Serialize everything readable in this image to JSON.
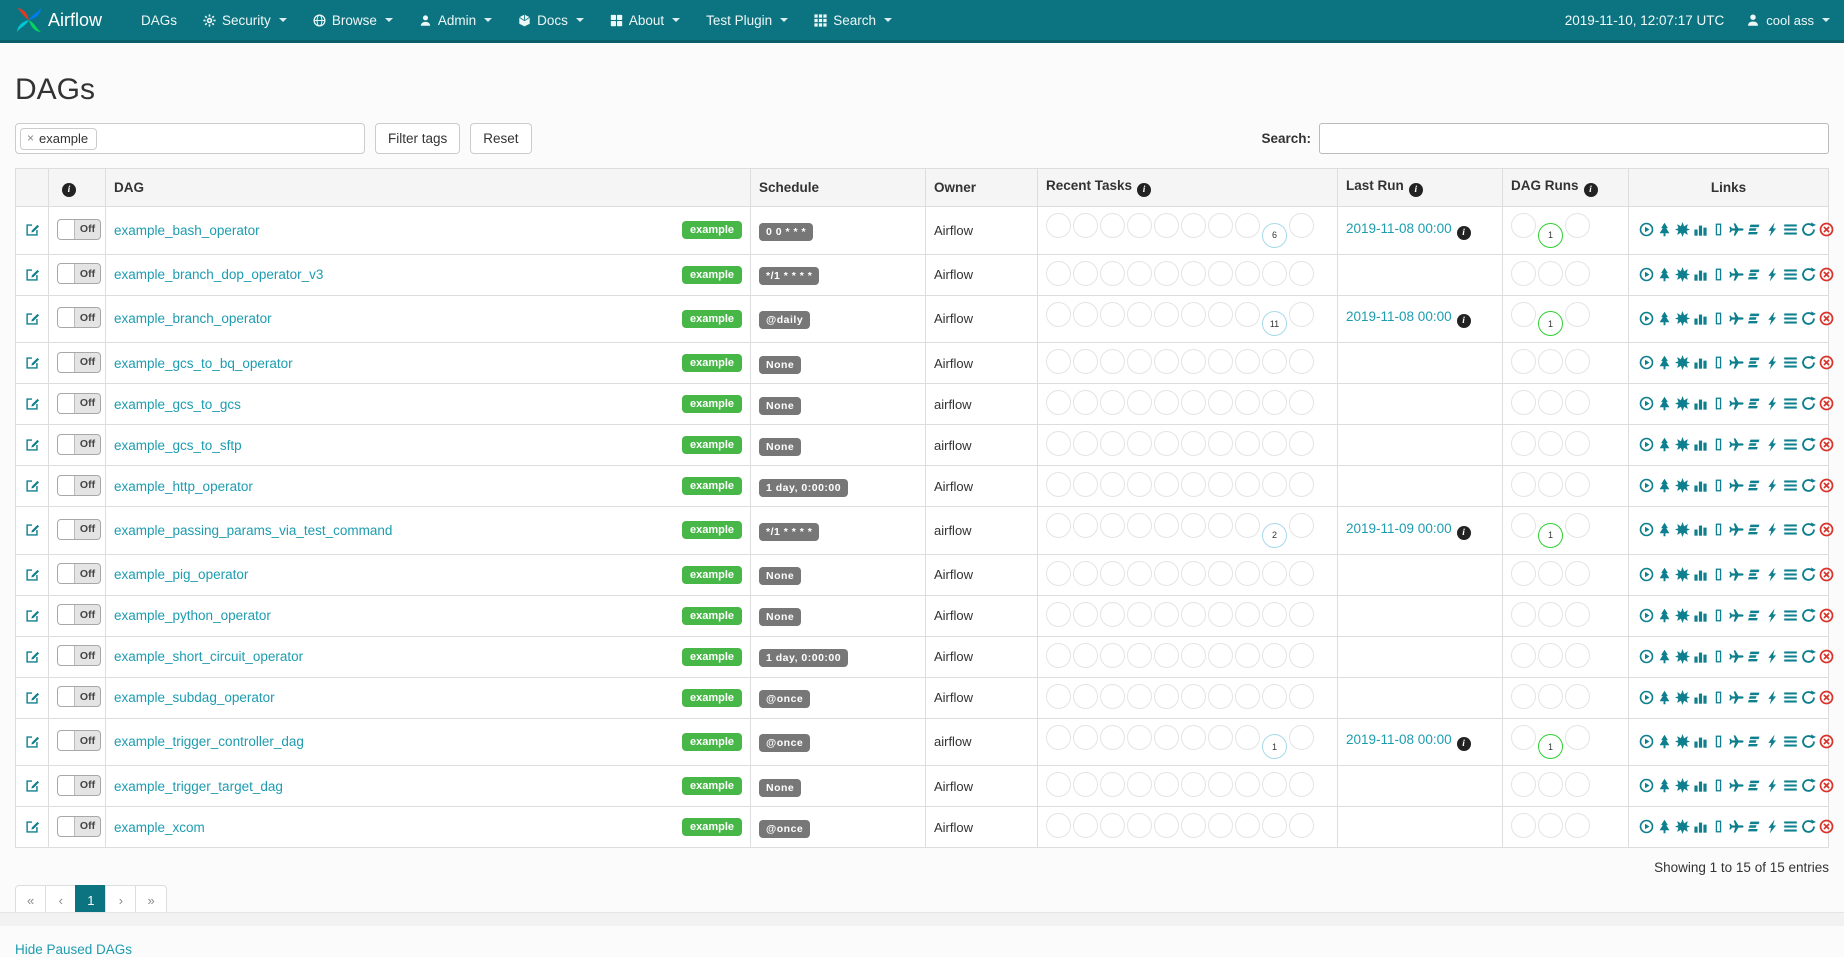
{
  "navbar": {
    "brand": "Airflow",
    "items": [
      {
        "label": "DAGs",
        "icon": null,
        "dropdown": false
      },
      {
        "label": "Security",
        "icon": "gear",
        "dropdown": true
      },
      {
        "label": "Browse",
        "icon": "globe",
        "dropdown": true
      },
      {
        "label": "Admin",
        "icon": "user",
        "dropdown": true
      },
      {
        "label": "Docs",
        "icon": "cube",
        "dropdown": true
      },
      {
        "label": "About",
        "icon": "grid4",
        "dropdown": true
      },
      {
        "label": "Test Plugin",
        "icon": null,
        "dropdown": true
      },
      {
        "label": "Search",
        "icon": "grid9",
        "dropdown": true
      }
    ],
    "clock": "2019-11-10, 12:07:17 UTC",
    "user": "cool ass"
  },
  "page": {
    "title": "DAGs"
  },
  "filters": {
    "tag_chip": "example",
    "filter_button": "Filter tags",
    "reset_button": "Reset",
    "search_label": "Search:",
    "search_value": ""
  },
  "table": {
    "columns": [
      {
        "label": "",
        "info": false
      },
      {
        "label": "",
        "info": true
      },
      {
        "label": "DAG",
        "info": false
      },
      {
        "label": "Schedule",
        "info": false
      },
      {
        "label": "Owner",
        "info": false
      },
      {
        "label": "Recent Tasks",
        "info": true
      },
      {
        "label": "Last Run",
        "info": true
      },
      {
        "label": "DAG Runs",
        "info": true
      },
      {
        "label": "Links",
        "info": false,
        "center": true
      }
    ],
    "toggle_label": "Off",
    "recent_task_circles": 10,
    "dag_run_circles": 3,
    "links": [
      {
        "name": "trigger-dag",
        "icon": "play-circle"
      },
      {
        "name": "tree-view",
        "icon": "tree"
      },
      {
        "name": "graph-view",
        "icon": "graph"
      },
      {
        "name": "task-duration",
        "icon": "bar-chart"
      },
      {
        "name": "task-tries",
        "icon": "tries"
      },
      {
        "name": "landing-times",
        "icon": "plane"
      },
      {
        "name": "gantt-view",
        "icon": "gantt"
      },
      {
        "name": "code-view",
        "icon": "bolt"
      },
      {
        "name": "logs",
        "icon": "lines"
      },
      {
        "name": "refresh",
        "icon": "refresh"
      },
      {
        "name": "delete-dag",
        "icon": "delete",
        "danger": true
      }
    ],
    "rows": [
      {
        "name": "example_bash_operator",
        "tag": "example",
        "schedule": "0 0 * * *",
        "owner": "Airflow",
        "recent": {
          "index": 8,
          "count": "6",
          "state": "none"
        },
        "last_run": "2019-11-08 00:00",
        "dag_runs": {
          "index": 1,
          "count": "1",
          "state": "success"
        }
      },
      {
        "name": "example_branch_dop_operator_v3",
        "tag": "example",
        "schedule": "*/1 * * * *",
        "owner": "Airflow",
        "recent": null,
        "last_run": "",
        "dag_runs": null
      },
      {
        "name": "example_branch_operator",
        "tag": "example",
        "schedule": "@daily",
        "owner": "Airflow",
        "recent": {
          "index": 8,
          "count": "11",
          "state": "none"
        },
        "last_run": "2019-11-08 00:00",
        "dag_runs": {
          "index": 1,
          "count": "1",
          "state": "success"
        }
      },
      {
        "name": "example_gcs_to_bq_operator",
        "tag": "example",
        "schedule": "None",
        "owner": "Airflow",
        "recent": null,
        "last_run": "",
        "dag_runs": null
      },
      {
        "name": "example_gcs_to_gcs",
        "tag": "example",
        "schedule": "None",
        "owner": "airflow",
        "recent": null,
        "last_run": "",
        "dag_runs": null
      },
      {
        "name": "example_gcs_to_sftp",
        "tag": "example",
        "schedule": "None",
        "owner": "airflow",
        "recent": null,
        "last_run": "",
        "dag_runs": null
      },
      {
        "name": "example_http_operator",
        "tag": "example",
        "schedule": "1 day, 0:00:00",
        "owner": "Airflow",
        "recent": null,
        "last_run": "",
        "dag_runs": null
      },
      {
        "name": "example_passing_params_via_test_command",
        "tag": "example",
        "schedule": "*/1 * * * *",
        "owner": "airflow",
        "recent": {
          "index": 8,
          "count": "2",
          "state": "none"
        },
        "last_run": "2019-11-09 00:00",
        "dag_runs": {
          "index": 1,
          "count": "1",
          "state": "success"
        }
      },
      {
        "name": "example_pig_operator",
        "tag": "example",
        "schedule": "None",
        "owner": "Airflow",
        "recent": null,
        "last_run": "",
        "dag_runs": null
      },
      {
        "name": "example_python_operator",
        "tag": "example",
        "schedule": "None",
        "owner": "Airflow",
        "recent": null,
        "last_run": "",
        "dag_runs": null
      },
      {
        "name": "example_short_circuit_operator",
        "tag": "example",
        "schedule": "1 day, 0:00:00",
        "owner": "Airflow",
        "recent": null,
        "last_run": "",
        "dag_runs": null
      },
      {
        "name": "example_subdag_operator",
        "tag": "example",
        "schedule": "@once",
        "owner": "Airflow",
        "recent": null,
        "last_run": "",
        "dag_runs": null
      },
      {
        "name": "example_trigger_controller_dag",
        "tag": "example",
        "schedule": "@once",
        "owner": "airflow",
        "recent": {
          "index": 8,
          "count": "1",
          "state": "none"
        },
        "last_run": "2019-11-08 00:00",
        "dag_runs": {
          "index": 1,
          "count": "1",
          "state": "success"
        }
      },
      {
        "name": "example_trigger_target_dag",
        "tag": "example",
        "schedule": "None",
        "owner": "Airflow",
        "recent": null,
        "last_run": "",
        "dag_runs": null
      },
      {
        "name": "example_xcom",
        "tag": "example",
        "schedule": "@once",
        "owner": "Airflow",
        "recent": null,
        "last_run": "",
        "dag_runs": null
      }
    ]
  },
  "footer": {
    "showing": "Showing 1 to 15 of 15 entries",
    "pagination": [
      {
        "label": "«",
        "active": false
      },
      {
        "label": "‹",
        "active": false
      },
      {
        "label": "1",
        "active": true
      },
      {
        "label": "›",
        "active": false
      },
      {
        "label": "»",
        "active": false
      }
    ],
    "hide_paused": "Hide Paused DAGs"
  },
  "colors": {
    "navbar": "#0c7480",
    "link": "#1d9cb0",
    "tag_green": "#47b747",
    "schedule_gray": "#777777",
    "state_none_border": "#a6d9e8",
    "state_success_border": "#2ed12e",
    "link_icon_teal": "#0e7f8e",
    "delete_red": "#d9342b"
  }
}
